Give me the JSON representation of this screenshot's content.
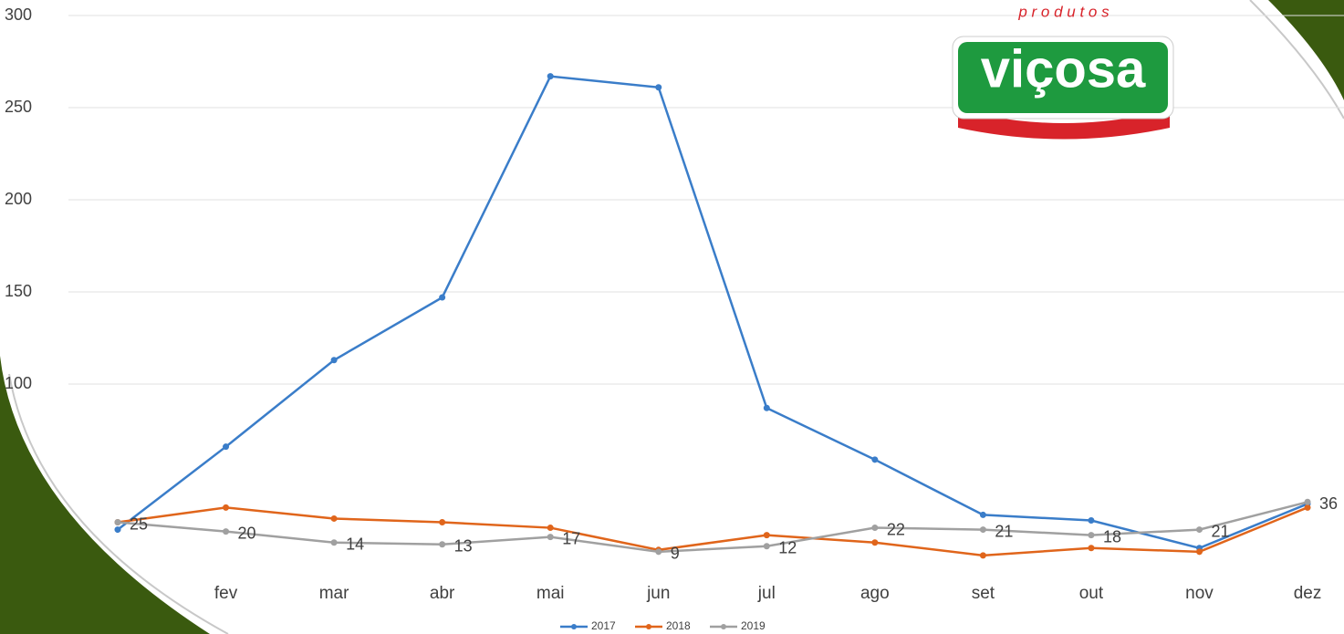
{
  "chart_data": {
    "type": "line",
    "categories": [
      null,
      "fev",
      "mar",
      "abr",
      "mai",
      "jun",
      "jul",
      "ago",
      "set",
      "out",
      "nov",
      "dez"
    ],
    "series": [
      {
        "name": "2017",
        "color": "#3a7dc9",
        "values": [
          21,
          66,
          113,
          147,
          267,
          261,
          87,
          59,
          29,
          26,
          11,
          35
        ]
      },
      {
        "name": "2018",
        "color": "#e0651b",
        "values": [
          25,
          33,
          27,
          25,
          22,
          10,
          18,
          14,
          7,
          11,
          9,
          33
        ]
      },
      {
        "name": "2019",
        "color": "#a0a0a0",
        "values": [
          25,
          20,
          14,
          13,
          17,
          9,
          12,
          22,
          21,
          18,
          21,
          36
        ],
        "data_labels": true
      }
    ],
    "ylim": [
      0,
      300
    ],
    "yticks": [
      100,
      150,
      200,
      250,
      300
    ],
    "grid": true,
    "legend": "bottom"
  },
  "logo": {
    "top": "p r o d u t o s",
    "brand": "viçosa"
  }
}
